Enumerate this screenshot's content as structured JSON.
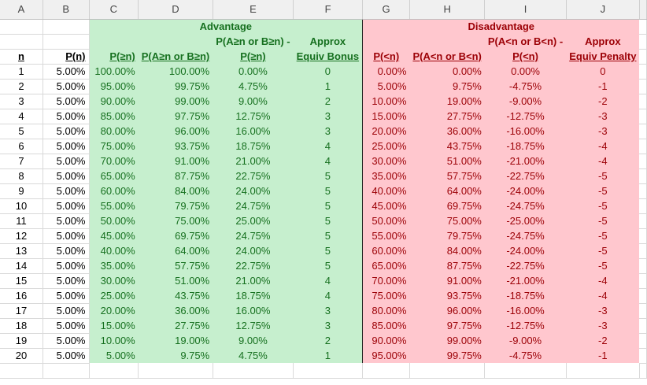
{
  "columns": [
    "A",
    "B",
    "C",
    "D",
    "E",
    "F",
    "G",
    "H",
    "I",
    "J"
  ],
  "section_titles": {
    "advantage": "Advantage",
    "disadvantage": "Disadvantage"
  },
  "headers_line1": {
    "E": "P(A≥n or B≥n) -",
    "F": "Approx",
    "I": "P(A<n or B<n) -",
    "J": "Approx"
  },
  "headers": {
    "A": "n",
    "B": "P(n)",
    "C": "P(≥n)",
    "D": "P(A≥n or B≥n)",
    "E": "P(≥n)",
    "F": "Equiv Bonus",
    "G": "P(<n)",
    "H": "P(A<n or B<n)",
    "I": "P(<n)",
    "J": "Equiv Penalty"
  },
  "colors": {
    "advantage_bg": "#c6efce",
    "advantage_text": "#16701f",
    "disadvantage_bg": "#ffc7ce",
    "disadvantage_text": "#9c0006"
  },
  "rows": [
    [
      "1",
      "5.00%",
      "100.00%",
      "100.00%",
      "0.00%",
      "0",
      "0.00%",
      "0.00%",
      "0.00%",
      "0"
    ],
    [
      "2",
      "5.00%",
      "95.00%",
      "99.75%",
      "4.75%",
      "1",
      "5.00%",
      "9.75%",
      "-4.75%",
      "-1"
    ],
    [
      "3",
      "5.00%",
      "90.00%",
      "99.00%",
      "9.00%",
      "2",
      "10.00%",
      "19.00%",
      "-9.00%",
      "-2"
    ],
    [
      "4",
      "5.00%",
      "85.00%",
      "97.75%",
      "12.75%",
      "3",
      "15.00%",
      "27.75%",
      "-12.75%",
      "-3"
    ],
    [
      "5",
      "5.00%",
      "80.00%",
      "96.00%",
      "16.00%",
      "3",
      "20.00%",
      "36.00%",
      "-16.00%",
      "-3"
    ],
    [
      "6",
      "5.00%",
      "75.00%",
      "93.75%",
      "18.75%",
      "4",
      "25.00%",
      "43.75%",
      "-18.75%",
      "-4"
    ],
    [
      "7",
      "5.00%",
      "70.00%",
      "91.00%",
      "21.00%",
      "4",
      "30.00%",
      "51.00%",
      "-21.00%",
      "-4"
    ],
    [
      "8",
      "5.00%",
      "65.00%",
      "87.75%",
      "22.75%",
      "5",
      "35.00%",
      "57.75%",
      "-22.75%",
      "-5"
    ],
    [
      "9",
      "5.00%",
      "60.00%",
      "84.00%",
      "24.00%",
      "5",
      "40.00%",
      "64.00%",
      "-24.00%",
      "-5"
    ],
    [
      "10",
      "5.00%",
      "55.00%",
      "79.75%",
      "24.75%",
      "5",
      "45.00%",
      "69.75%",
      "-24.75%",
      "-5"
    ],
    [
      "11",
      "5.00%",
      "50.00%",
      "75.00%",
      "25.00%",
      "5",
      "50.00%",
      "75.00%",
      "-25.00%",
      "-5"
    ],
    [
      "12",
      "5.00%",
      "45.00%",
      "69.75%",
      "24.75%",
      "5",
      "55.00%",
      "79.75%",
      "-24.75%",
      "-5"
    ],
    [
      "13",
      "5.00%",
      "40.00%",
      "64.00%",
      "24.00%",
      "5",
      "60.00%",
      "84.00%",
      "-24.00%",
      "-5"
    ],
    [
      "14",
      "5.00%",
      "35.00%",
      "57.75%",
      "22.75%",
      "5",
      "65.00%",
      "87.75%",
      "-22.75%",
      "-5"
    ],
    [
      "15",
      "5.00%",
      "30.00%",
      "51.00%",
      "21.00%",
      "4",
      "70.00%",
      "91.00%",
      "-21.00%",
      "-4"
    ],
    [
      "16",
      "5.00%",
      "25.00%",
      "43.75%",
      "18.75%",
      "4",
      "75.00%",
      "93.75%",
      "-18.75%",
      "-4"
    ],
    [
      "17",
      "5.00%",
      "20.00%",
      "36.00%",
      "16.00%",
      "3",
      "80.00%",
      "96.00%",
      "-16.00%",
      "-3"
    ],
    [
      "18",
      "5.00%",
      "15.00%",
      "27.75%",
      "12.75%",
      "3",
      "85.00%",
      "97.75%",
      "-12.75%",
      "-3"
    ],
    [
      "19",
      "5.00%",
      "10.00%",
      "19.00%",
      "9.00%",
      "2",
      "90.00%",
      "99.00%",
      "-9.00%",
      "-2"
    ],
    [
      "20",
      "5.00%",
      "5.00%",
      "9.75%",
      "4.75%",
      "1",
      "95.00%",
      "99.75%",
      "-4.75%",
      "-1"
    ]
  ]
}
